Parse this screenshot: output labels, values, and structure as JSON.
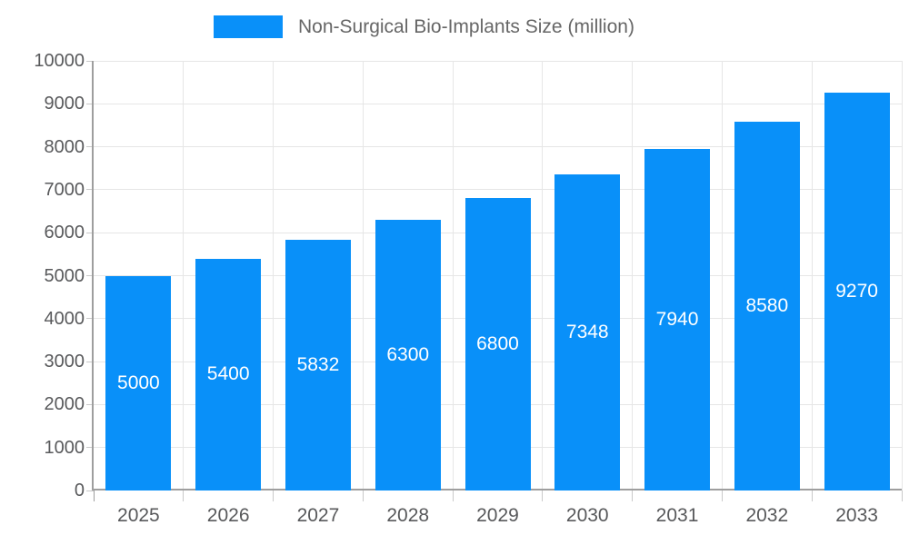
{
  "chart_data": {
    "type": "bar",
    "title": "Non-Surgical Bio-Implants Size (million)",
    "xlabel": "",
    "ylabel": "",
    "categories": [
      "2025",
      "2026",
      "2027",
      "2028",
      "2029",
      "2030",
      "2031",
      "2032",
      "2033"
    ],
    "values": [
      5000,
      5400,
      5832,
      6300,
      6800,
      7348,
      7940,
      8580,
      9270
    ],
    "bar_value_labels": [
      "5000",
      "5400",
      "5832",
      "6300",
      "6800",
      "7348",
      "7940",
      "8580",
      "9270"
    ],
    "ylim": [
      0,
      10000
    ],
    "yticks": [
      0,
      1000,
      2000,
      3000,
      4000,
      5000,
      6000,
      7000,
      8000,
      9000,
      10000
    ],
    "ytick_labels": [
      "0",
      "1000",
      "2000",
      "3000",
      "4000",
      "5000",
      "6000",
      "7000",
      "8000",
      "9000",
      "10000"
    ],
    "grid": true,
    "legend": {
      "label": "Non-Surgical Bio-Implants Size (million)",
      "position": "top-center",
      "swatch_color": "#0990f9"
    },
    "colors": {
      "bar": "#0990f9",
      "bar_label_text": "#ffffff",
      "grid_line": "#e6e6e6",
      "axis_line": "#9e9e9e",
      "tick_mark": "#c9c9c9",
      "axis_text": "#58595b",
      "legend_text": "#666666",
      "background": "#ffffff"
    }
  }
}
